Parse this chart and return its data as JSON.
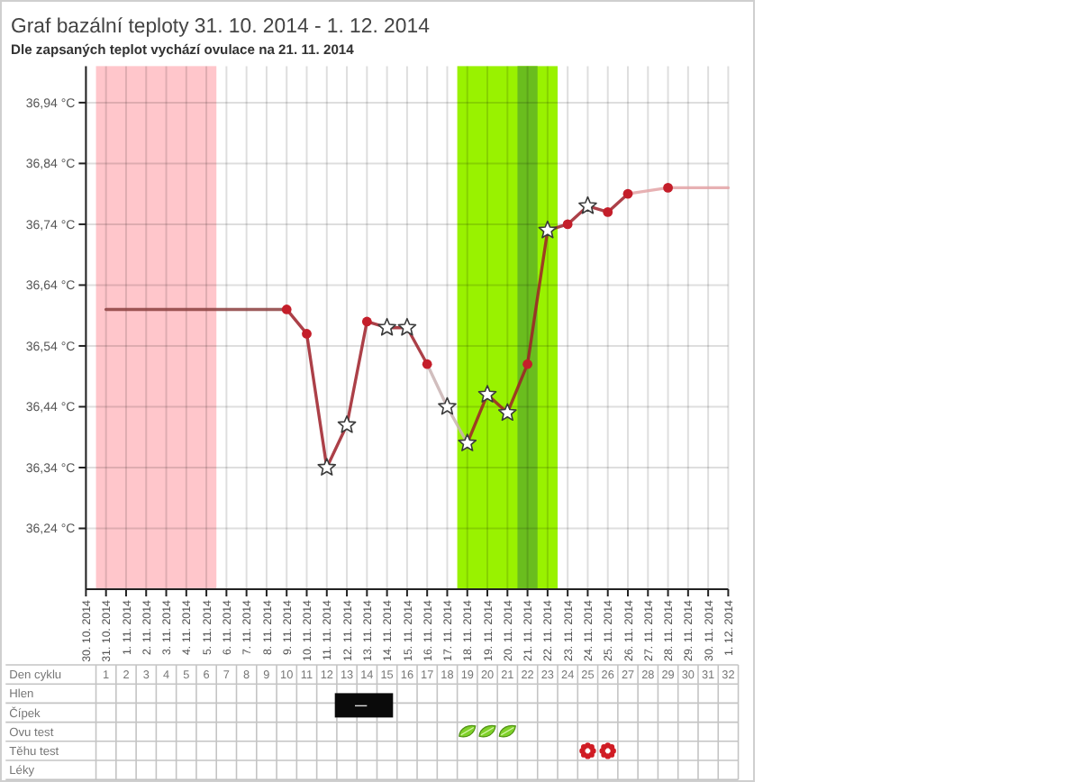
{
  "chart_data": {
    "type": "line",
    "title": "Graf bazální teploty 31. 10. 2014 - 1. 12. 2014",
    "subtitle": "Dle zapsaných teplot vychází ovulace na 21. 11. 2014",
    "x2label": "Den cyklu",
    "annotations": [
      "Hlen",
      "Čípek",
      "Ovu test",
      "Těhu test",
      "Léky"
    ],
    "xlim": [
      "2014-10-30",
      "2014-12-01"
    ],
    "xticks": [
      {
        "value": "2014-10-30",
        "label": "30. 10. 2014"
      },
      {
        "value": "2014-10-31",
        "label": "31. 10. 2014"
      },
      {
        "value": "2014-11-01",
        "label": "1. 11. 2014"
      },
      {
        "value": "2014-11-02",
        "label": "2. 11. 2014"
      },
      {
        "value": "2014-11-03",
        "label": "3. 11. 2014"
      },
      {
        "value": "2014-11-04",
        "label": "4. 11. 2014"
      },
      {
        "value": "2014-11-05",
        "label": "5. 11. 2014"
      },
      {
        "value": "2014-11-06",
        "label": "6. 11. 2014"
      },
      {
        "value": "2014-11-07",
        "label": "7. 11. 2014"
      },
      {
        "value": "2014-11-08",
        "label": "8. 11. 2014"
      },
      {
        "value": "2014-11-09",
        "label": "9. 11. 2014"
      },
      {
        "value": "2014-11-10",
        "label": "10. 11. 2014"
      },
      {
        "value": "2014-11-11",
        "label": "11. 11. 2014"
      },
      {
        "value": "2014-11-12",
        "label": "12. 11. 2014"
      },
      {
        "value": "2014-11-13",
        "label": "13. 11. 2014"
      },
      {
        "value": "2014-11-14",
        "label": "14. 11. 2014"
      },
      {
        "value": "2014-11-15",
        "label": "15. 11. 2014"
      },
      {
        "value": "2014-11-16",
        "label": "16. 11. 2014"
      },
      {
        "value": "2014-11-17",
        "label": "17. 11. 2014"
      },
      {
        "value": "2014-11-18",
        "label": "18. 11. 2014"
      },
      {
        "value": "2014-11-19",
        "label": "19. 11. 2014"
      },
      {
        "value": "2014-11-20",
        "label": "20. 11. 2014"
      },
      {
        "value": "2014-11-21",
        "label": "21. 11. 2014"
      },
      {
        "value": "2014-11-22",
        "label": "22. 11. 2014"
      },
      {
        "value": "2014-11-23",
        "label": "23. 11. 2014"
      },
      {
        "value": "2014-11-24",
        "label": "24. 11. 2014"
      },
      {
        "value": "2014-11-25",
        "label": "25. 11. 2014"
      },
      {
        "value": "2014-11-26",
        "label": "26. 11. 2014"
      },
      {
        "value": "2014-11-27",
        "label": "27. 11. 2014"
      },
      {
        "value": "2014-11-28",
        "label": "28. 11. 2014"
      },
      {
        "value": "2014-11-29",
        "label": "29. 11. 2014"
      },
      {
        "value": "2014-11-30",
        "label": "30. 11. 2014"
      },
      {
        "value": "2014-12-01",
        "label": "1. 12. 2014"
      }
    ],
    "x2lim": [
      -4,
      32.5
    ],
    "x2ticks": [
      1,
      2,
      3,
      4,
      5,
      6,
      7,
      8,
      9,
      10,
      11,
      12,
      13,
      14,
      15,
      16,
      17,
      18,
      19,
      20,
      21,
      22,
      23,
      24,
      25,
      26,
      27,
      28,
      29,
      30,
      31,
      32
    ],
    "ylim": [
      36.14,
      37.0
    ],
    "yticks": [
      {
        "value": 36.24,
        "label": "36,24 °C"
      },
      {
        "value": 36.34,
        "label": "36,34 °C"
      },
      {
        "value": 36.44,
        "label": "36,44 °C"
      },
      {
        "value": 36.54,
        "label": "36,54 °C"
      },
      {
        "value": 36.64,
        "label": "36,64 °C"
      },
      {
        "value": 36.74,
        "label": "36,74 °C"
      },
      {
        "value": 36.84,
        "label": "36,84 °C"
      },
      {
        "value": 36.94,
        "label": "36,94 °C"
      }
    ],
    "grid": true,
    "bands": [
      {
        "axis": "x",
        "from": "2014-10-30T12:00",
        "to": "2014-11-05T12:00",
        "color": "#ffc6cb"
      },
      {
        "axis": "x",
        "from": "2014-11-17T12:00",
        "to": "2014-11-22T12:00",
        "color": "#99f200"
      },
      {
        "axis": "x",
        "from": "2014-11-20T12:00",
        "to": "2014-11-21T12:00",
        "color": "#6abd1e"
      }
    ],
    "series": [
      {
        "marker": "none",
        "color": "#9e1f28",
        "x": [
          "2014-11-09",
          "2014-11-10",
          "2014-11-11",
          "2014-11-12",
          "2014-11-13",
          "2014-11-14",
          "2014-11-15",
          "2014-11-16",
          "2014-11-17",
          "2014-11-18",
          "2014-11-19",
          "2014-11-20",
          "2014-11-21",
          "2014-11-22",
          "2014-11-23",
          "2014-11-24",
          "2014-11-25",
          "2014-11-26"
        ],
        "values": [
          36.6,
          36.56,
          36.34,
          36.41,
          36.58,
          36.57,
          36.57,
          36.51,
          null,
          36.38,
          36.46,
          36.43,
          36.51,
          36.73,
          36.74,
          36.77,
          36.76,
          36.79
        ]
      },
      {
        "marker": "none",
        "color": "#8c3f3f",
        "x": [
          "2014-10-31",
          "2014-11-09"
        ],
        "values": [
          36.6,
          36.6
        ]
      },
      {
        "marker": "none",
        "color": "#c9b3b3",
        "x": [
          "2014-11-16",
          "2014-11-17",
          "2014-11-18"
        ],
        "values": [
          36.51,
          36.44,
          36.38
        ]
      },
      {
        "marker": "none",
        "color": "#e3a3a6",
        "x": [
          "2014-11-26",
          "2014-11-28",
          "2014-12-01"
        ],
        "values": [
          36.79,
          36.8,
          36.8
        ]
      },
      {
        "type": "scatter",
        "marker": "circle",
        "color": "#c41e2a",
        "x": [
          "2014-11-09",
          "2014-11-10",
          "2014-11-13",
          "2014-11-16",
          "2014-11-21",
          "2014-11-23",
          "2014-11-25",
          "2014-11-26",
          "2014-11-28"
        ],
        "values": [
          36.6,
          36.56,
          36.58,
          36.51,
          36.51,
          36.74,
          36.76,
          36.79,
          36.8
        ]
      },
      {
        "type": "scatter",
        "marker": "star",
        "color": "#ffffff",
        "x": [
          "2014-11-11",
          "2014-11-12",
          "2014-11-14",
          "2014-11-15",
          "2014-11-17",
          "2014-11-18",
          "2014-11-19",
          "2014-11-20",
          "2014-11-22",
          "2014-11-24"
        ],
        "values": [
          36.34,
          36.41,
          36.57,
          36.57,
          36.44,
          36.38,
          36.46,
          36.43,
          36.73,
          36.77
        ]
      }
    ]
  }
}
